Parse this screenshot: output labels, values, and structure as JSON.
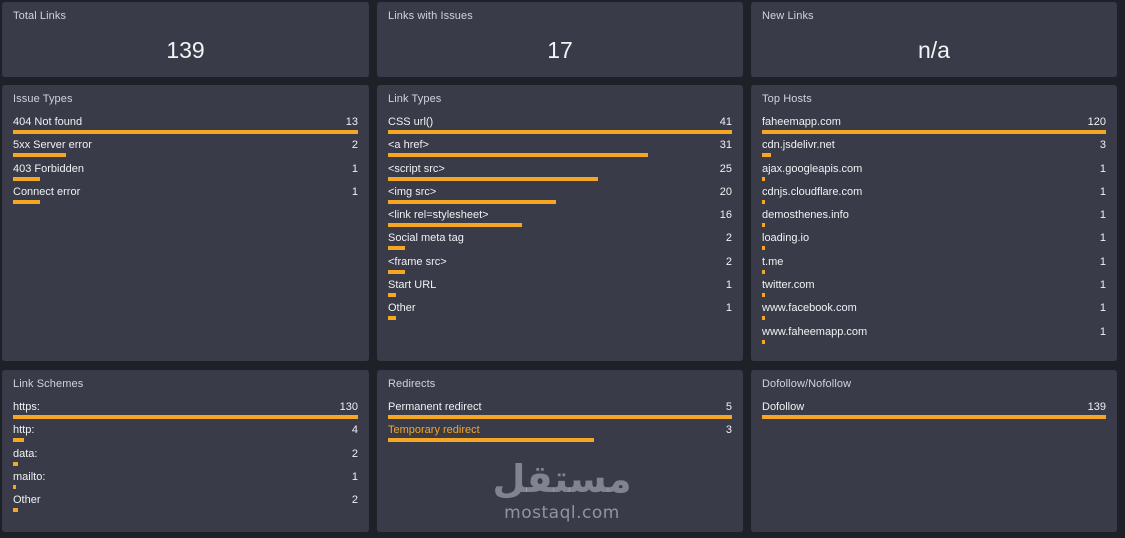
{
  "summary": {
    "total_links": {
      "title": "Total Links",
      "value": "139"
    },
    "links_with_issues": {
      "title": "Links with Issues",
      "value": "17"
    },
    "new_links": {
      "title": "New Links",
      "value": "n/a"
    }
  },
  "issue_types": {
    "title": "Issue Types",
    "rows": [
      {
        "label": "404 Not found",
        "count": "13",
        "fraction": 1.0
      },
      {
        "label": "5xx Server error",
        "count": "2",
        "fraction": 0.154
      },
      {
        "label": "403 Forbidden",
        "count": "1",
        "fraction": 0.077
      },
      {
        "label": "Connect error",
        "count": "1",
        "fraction": 0.077
      }
    ]
  },
  "link_types": {
    "title": "Link Types",
    "rows": [
      {
        "label": "CSS url()",
        "count": "41",
        "fraction": 1.0
      },
      {
        "label": "<a href>",
        "count": "31",
        "fraction": 0.756
      },
      {
        "label": "<script src>",
        "count": "25",
        "fraction": 0.61
      },
      {
        "label": "<img src>",
        "count": "20",
        "fraction": 0.488
      },
      {
        "label": "<link rel=stylesheet>",
        "count": "16",
        "fraction": 0.39
      },
      {
        "label": "Social meta tag",
        "count": "2",
        "fraction": 0.049
      },
      {
        "label": "<frame src>",
        "count": "2",
        "fraction": 0.049
      },
      {
        "label": "Start URL",
        "count": "1",
        "fraction": 0.024
      },
      {
        "label": "Other",
        "count": "1",
        "fraction": 0.024
      }
    ]
  },
  "top_hosts": {
    "title": "Top Hosts",
    "rows": [
      {
        "label": "faheemapp.com",
        "count": "120",
        "fraction": 1.0
      },
      {
        "label": "cdn.jsdelivr.net",
        "count": "3",
        "fraction": 0.025
      },
      {
        "label": "ajax.googleapis.com",
        "count": "1",
        "fraction": 0.008
      },
      {
        "label": "cdnjs.cloudflare.com",
        "count": "1",
        "fraction": 0.008
      },
      {
        "label": "demosthenes.info",
        "count": "1",
        "fraction": 0.008
      },
      {
        "label": "loading.io",
        "count": "1",
        "fraction": 0.008
      },
      {
        "label": "t.me",
        "count": "1",
        "fraction": 0.008
      },
      {
        "label": "twitter.com",
        "count": "1",
        "fraction": 0.008
      },
      {
        "label": "www.facebook.com",
        "count": "1",
        "fraction": 0.008
      },
      {
        "label": "www.faheemapp.com",
        "count": "1",
        "fraction": 0.008
      }
    ]
  },
  "link_schemes": {
    "title": "Link Schemes",
    "rows": [
      {
        "label": "https:",
        "count": "130",
        "fraction": 1.0
      },
      {
        "label": "http:",
        "count": "4",
        "fraction": 0.031
      },
      {
        "label": "data:",
        "count": "2",
        "fraction": 0.015
      },
      {
        "label": "mailto:",
        "count": "1",
        "fraction": 0.008
      },
      {
        "label": "Other",
        "count": "2",
        "fraction": 0.015
      }
    ]
  },
  "redirects": {
    "title": "Redirects",
    "rows": [
      {
        "label": "Permanent redirect",
        "count": "5",
        "fraction": 1.0
      },
      {
        "label": "Temporary redirect",
        "count": "3",
        "fraction": 0.6,
        "highlight": true
      }
    ]
  },
  "dofollow": {
    "title": "Dofollow/Nofollow",
    "rows": [
      {
        "label": "Dofollow",
        "count": "139",
        "fraction": 1.0
      }
    ]
  },
  "watermark": {
    "logo_text": "مستقل",
    "site": "mostaql.com"
  },
  "colors": {
    "bar": "#f5a623",
    "card": "#393c48",
    "background": "#1f2129"
  }
}
